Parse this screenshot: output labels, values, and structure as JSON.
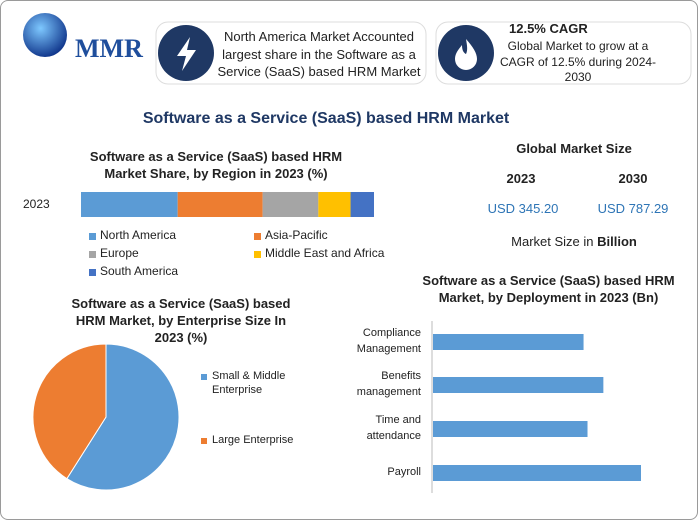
{
  "header": {
    "logo": "MMR",
    "box1": "North America Market Accounted largest share in the Software as a Service (SaaS) based HRM Market",
    "box2_title": "12.5% CAGR",
    "box2_text": "Global Market to grow at a\nCAGR of 12.5% during 2024-\n2030"
  },
  "title": "Software as a Service (SaaS) based HRM Market",
  "market_size": {
    "title": "Global Market Size",
    "years": [
      "2023",
      "2030"
    ],
    "values": [
      "USD 345.20",
      "USD 787.29"
    ],
    "note": "Market Size in",
    "unit": "Billion"
  },
  "chart_data": [
    {
      "type": "stacked_bar",
      "title": "Software as a Service (SaaS) based HRM\nMarket Share, by Region in 2023 (%)",
      "categories": [
        "2023"
      ],
      "series": [
        {
          "name": "North America",
          "color": "#5b9bd5",
          "values": [
            33
          ]
        },
        {
          "name": "Asia-Pacific",
          "color": "#ed7d31",
          "values": [
            29
          ]
        },
        {
          "name": "Europe",
          "color": "#a5a5a5",
          "values": [
            19
          ]
        },
        {
          "name": "Middle East and Africa",
          "color": "#ffc000",
          "values": [
            11
          ]
        },
        {
          "name": "South America",
          "color": "#4472c4",
          "values": [
            8
          ]
        }
      ]
    },
    {
      "type": "pie",
      "title": "Software as a Service (SaaS) based\nHRM Market, by Enterprise Size In\n2023 (%)",
      "categories": [
        "Small & Middle\nEnterprise",
        "Large Enterprise"
      ],
      "values": [
        59,
        41
      ],
      "colors": [
        "#5b9bd5",
        "#ed7d31"
      ]
    },
    {
      "type": "hbar",
      "title": "Software as a Service (SaaS) based HRM\nMarket, by Deployment in 2023 (Bn)",
      "categories": [
        "Compliance\nManagement",
        "Benefits\nmanagement",
        "Time and\nattendance",
        "Payroll"
      ],
      "values": [
        76,
        86,
        78,
        105
      ],
      "color": "#5b9bd5"
    }
  ]
}
